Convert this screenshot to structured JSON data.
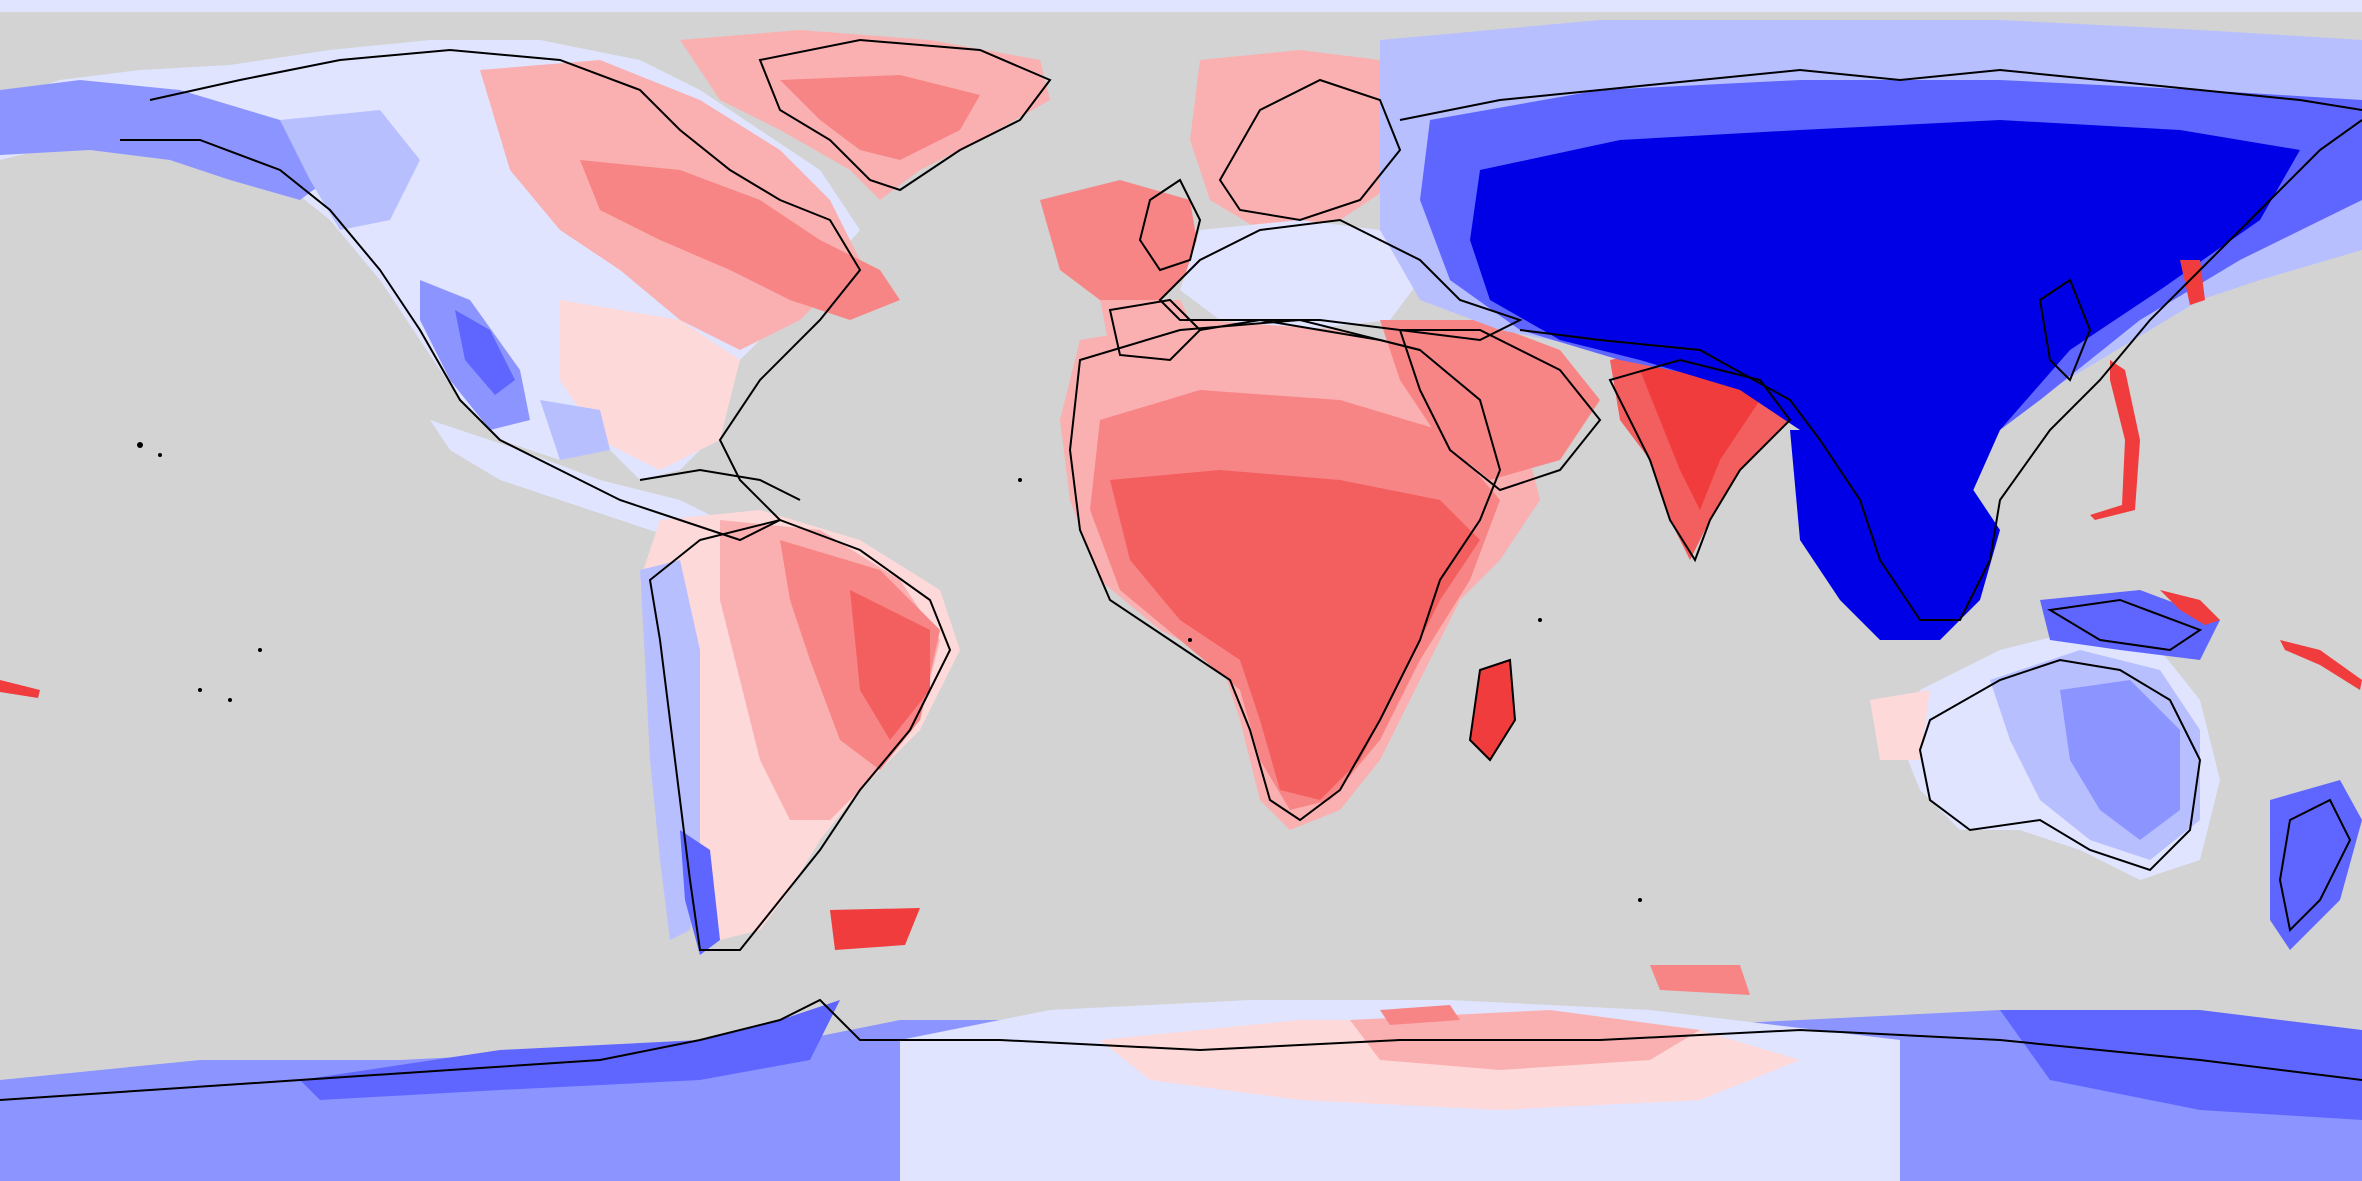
{
  "map": {
    "projection": "equirectangular",
    "colors": {
      "ocean": "#d3d3d3",
      "coastline": "#000000",
      "scale": {
        "red_strong": "#f03c3c",
        "red_2": "#f35e5e",
        "red_3": "#f78585",
        "red_4": "#fab0b0",
        "red_5": "#fdd9d9",
        "neutral": "#ffffff",
        "blue_5": "#e0e4ff",
        "blue_4": "#b7bfff",
        "blue_3": "#8c95ff",
        "blue_2": "#5f66ff",
        "blue_strong": "#0000e6"
      }
    }
  }
}
